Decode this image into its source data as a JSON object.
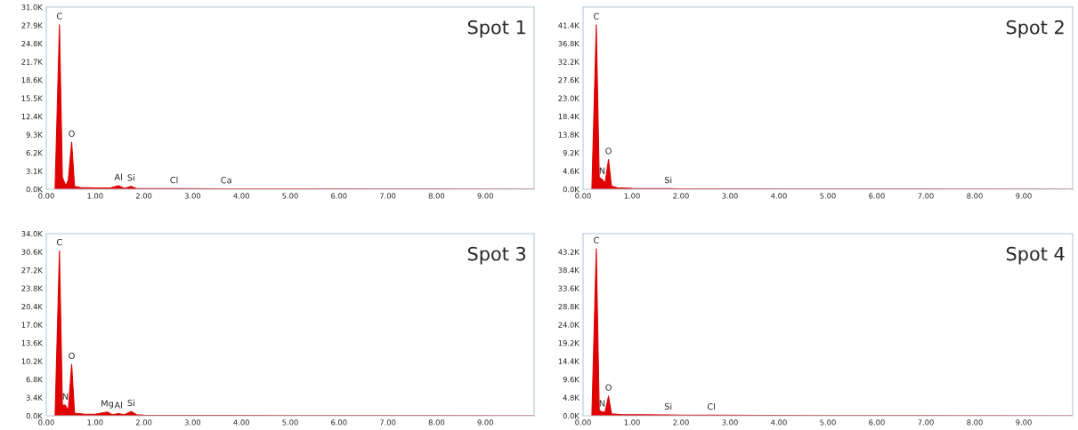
{
  "chart_data": [
    {
      "type": "area",
      "title": "Spot 1",
      "series": [
        {
          "color": "#e00000",
          "x": [
            0.18,
            0.27,
            0.33,
            0.4,
            0.45,
            0.52,
            0.58,
            0.7,
            1.0,
            1.3,
            1.48,
            1.6,
            1.74,
            1.85,
            2.62,
            3.69,
            5.0,
            10.0
          ],
          "values": [
            0,
            28000,
            2000,
            600,
            1500,
            8000,
            500,
            300,
            200,
            200,
            600,
            150,
            500,
            100,
            100,
            80,
            50,
            0
          ]
        }
      ],
      "annotations": [
        {
          "text": "C",
          "x": 0.27,
          "y": 28000
        },
        {
          "text": "O",
          "x": 0.52,
          "y": 8000
        },
        {
          "text": "Al",
          "x": 1.48,
          "y": 600
        },
        {
          "text": "Si",
          "x": 1.74,
          "y": 500
        },
        {
          "text": "Cl",
          "x": 2.62,
          "y": 100
        },
        {
          "text": "Ca",
          "x": 3.69,
          "y": 80
        }
      ],
      "xlim": [
        0,
        10
      ],
      "ylim": [
        0,
        31000
      ],
      "xticks": [
        {
          "value": 0,
          "label": "0.00"
        },
        {
          "value": 1,
          "label": "1.00"
        },
        {
          "value": 2,
          "label": "2.00"
        },
        {
          "value": 3,
          "label": "3.00"
        },
        {
          "value": 4,
          "label": "4.00"
        },
        {
          "value": 5,
          "label": "5.00"
        },
        {
          "value": 6,
          "label": "6.00"
        },
        {
          "value": 7,
          "label": "7.00"
        },
        {
          "value": 8,
          "label": "8.00"
        },
        {
          "value": 9,
          "label": "9.00"
        }
      ],
      "yticks": [
        {
          "value": 0,
          "label": "0.0K"
        },
        {
          "value": 3100,
          "label": "3.1K"
        },
        {
          "value": 6200,
          "label": "6.2K"
        },
        {
          "value": 9300,
          "label": "9.3K"
        },
        {
          "value": 12400,
          "label": "12.4K"
        },
        {
          "value": 15500,
          "label": "15.5K"
        },
        {
          "value": 18600,
          "label": "18.6K"
        },
        {
          "value": 21700,
          "label": "21.7K"
        },
        {
          "value": 24800,
          "label": "24.8K"
        },
        {
          "value": 27900,
          "label": "27.9K"
        },
        {
          "value": 31000,
          "label": "31.0K"
        }
      ],
      "grid": false
    },
    {
      "type": "area",
      "title": "Spot 2",
      "series": [
        {
          "color": "#e00000",
          "x": [
            0.18,
            0.27,
            0.33,
            0.39,
            0.45,
            0.52,
            0.58,
            0.7,
            1.0,
            1.74,
            2.0,
            5.0,
            10.0
          ],
          "values": [
            0,
            41500,
            3000,
            2500,
            1500,
            7500,
            800,
            400,
            200,
            150,
            100,
            50,
            0
          ]
        }
      ],
      "annotations": [
        {
          "text": "C",
          "x": 0.27,
          "y": 41500
        },
        {
          "text": "N",
          "x": 0.39,
          "y": 2500
        },
        {
          "text": "O",
          "x": 0.52,
          "y": 7500
        },
        {
          "text": "Si",
          "x": 1.74,
          "y": 150
        }
      ],
      "xlim": [
        0,
        10
      ],
      "ylim": [
        0,
        46000
      ],
      "xticks": [
        {
          "value": 0,
          "label": "0.00"
        },
        {
          "value": 1,
          "label": "1.00"
        },
        {
          "value": 2,
          "label": "2.00"
        },
        {
          "value": 3,
          "label": "3.00"
        },
        {
          "value": 4,
          "label": "4.00"
        },
        {
          "value": 5,
          "label": "5.00"
        },
        {
          "value": 6,
          "label": "6.00"
        },
        {
          "value": 7,
          "label": "7.00"
        },
        {
          "value": 8,
          "label": "8.00"
        },
        {
          "value": 9,
          "label": "9.00"
        }
      ],
      "yticks": [
        {
          "value": 0,
          "label": "0.0K"
        },
        {
          "value": 4600,
          "label": "4.6K"
        },
        {
          "value": 9200,
          "label": "9.2K"
        },
        {
          "value": 13800,
          "label": "13.8K"
        },
        {
          "value": 18400,
          "label": "18.4K"
        },
        {
          "value": 23000,
          "label": "23.0K"
        },
        {
          "value": 27600,
          "label": "27.6K"
        },
        {
          "value": 32200,
          "label": "32.2K"
        },
        {
          "value": 36800,
          "label": "36.8K"
        },
        {
          "value": 41400,
          "label": "41.4K"
        }
      ],
      "grid": false
    },
    {
      "type": "area",
      "title": "Spot 3",
      "series": [
        {
          "color": "#e00000",
          "x": [
            0.18,
            0.27,
            0.33,
            0.39,
            0.45,
            0.52,
            0.58,
            0.8,
            1.0,
            1.25,
            1.35,
            1.48,
            1.6,
            1.74,
            1.85,
            2.0,
            5.0,
            10.0
          ],
          "values": [
            0,
            30800,
            2000,
            2000,
            1000,
            9600,
            500,
            300,
            300,
            700,
            200,
            400,
            200,
            800,
            200,
            100,
            50,
            0
          ]
        }
      ],
      "annotations": [
        {
          "text": "C",
          "x": 0.27,
          "y": 30800
        },
        {
          "text": "N",
          "x": 0.39,
          "y": 2000
        },
        {
          "text": "O",
          "x": 0.52,
          "y": 9600
        },
        {
          "text": "Mg",
          "x": 1.25,
          "y": 700
        },
        {
          "text": "Al",
          "x": 1.48,
          "y": 400
        },
        {
          "text": "Si",
          "x": 1.74,
          "y": 800
        }
      ],
      "xlim": [
        0,
        10
      ],
      "ylim": [
        0,
        34000
      ],
      "xticks": [
        {
          "value": 0,
          "label": "0.00"
        },
        {
          "value": 1,
          "label": "1.00"
        },
        {
          "value": 2,
          "label": "2.00"
        },
        {
          "value": 3,
          "label": "3.00"
        },
        {
          "value": 4,
          "label": "4.00"
        },
        {
          "value": 5,
          "label": "5.00"
        },
        {
          "value": 6,
          "label": "6.00"
        },
        {
          "value": 7,
          "label": "7.00"
        },
        {
          "value": 8,
          "label": "8.00"
        },
        {
          "value": 9,
          "label": "9.00"
        }
      ],
      "yticks": [
        {
          "value": 0,
          "label": "0.0K"
        },
        {
          "value": 3400,
          "label": "3.4K"
        },
        {
          "value": 6800,
          "label": "6.8K"
        },
        {
          "value": 10200,
          "label": "10.2K"
        },
        {
          "value": 13600,
          "label": "13.6K"
        },
        {
          "value": 17000,
          "label": "17.0K"
        },
        {
          "value": 20400,
          "label": "20.4K"
        },
        {
          "value": 23800,
          "label": "23.8K"
        },
        {
          "value": 27200,
          "label": "27.2K"
        },
        {
          "value": 30600,
          "label": "30.6K"
        },
        {
          "value": 34000,
          "label": "34.0K"
        }
      ],
      "grid": false
    },
    {
      "type": "area",
      "title": "Spot 4",
      "series": [
        {
          "color": "#e00000",
          "x": [
            0.18,
            0.27,
            0.33,
            0.39,
            0.45,
            0.52,
            0.58,
            0.8,
            1.2,
            1.74,
            2.62,
            5.0,
            10.0
          ],
          "values": [
            0,
            44000,
            1500,
            1000,
            1000,
            5200,
            500,
            300,
            300,
            200,
            150,
            50,
            0
          ]
        }
      ],
      "annotations": [
        {
          "text": "C",
          "x": 0.27,
          "y": 44000
        },
        {
          "text": "N",
          "x": 0.39,
          "y": 1000
        },
        {
          "text": "O",
          "x": 0.52,
          "y": 5200
        },
        {
          "text": "Si",
          "x": 1.74,
          "y": 200
        },
        {
          "text": "Cl",
          "x": 2.62,
          "y": 150
        }
      ],
      "xlim": [
        0,
        10
      ],
      "ylim": [
        0,
        48000
      ],
      "xticks": [
        {
          "value": 0,
          "label": "0.00"
        },
        {
          "value": 1,
          "label": "1.00"
        },
        {
          "value": 2,
          "label": "2.00"
        },
        {
          "value": 3,
          "label": "3.00"
        },
        {
          "value": 4,
          "label": "4.00"
        },
        {
          "value": 5,
          "label": "5.00"
        },
        {
          "value": 6,
          "label": "6.00"
        },
        {
          "value": 7,
          "label": "7.00"
        },
        {
          "value": 8,
          "label": "8.00"
        },
        {
          "value": 9,
          "label": "9.00"
        }
      ],
      "yticks": [
        {
          "value": 0,
          "label": "0.0K"
        },
        {
          "value": 4800,
          "label": "4.8K"
        },
        {
          "value": 9600,
          "label": "9.6K"
        },
        {
          "value": 14400,
          "label": "14.4K"
        },
        {
          "value": 19200,
          "label": "19.2K"
        },
        {
          "value": 24000,
          "label": "24.0K"
        },
        {
          "value": 28800,
          "label": "28.8K"
        },
        {
          "value": 33600,
          "label": "33.6K"
        },
        {
          "value": 38400,
          "label": "38.4K"
        },
        {
          "value": 43200,
          "label": "43.2K"
        }
      ],
      "grid": false
    }
  ]
}
